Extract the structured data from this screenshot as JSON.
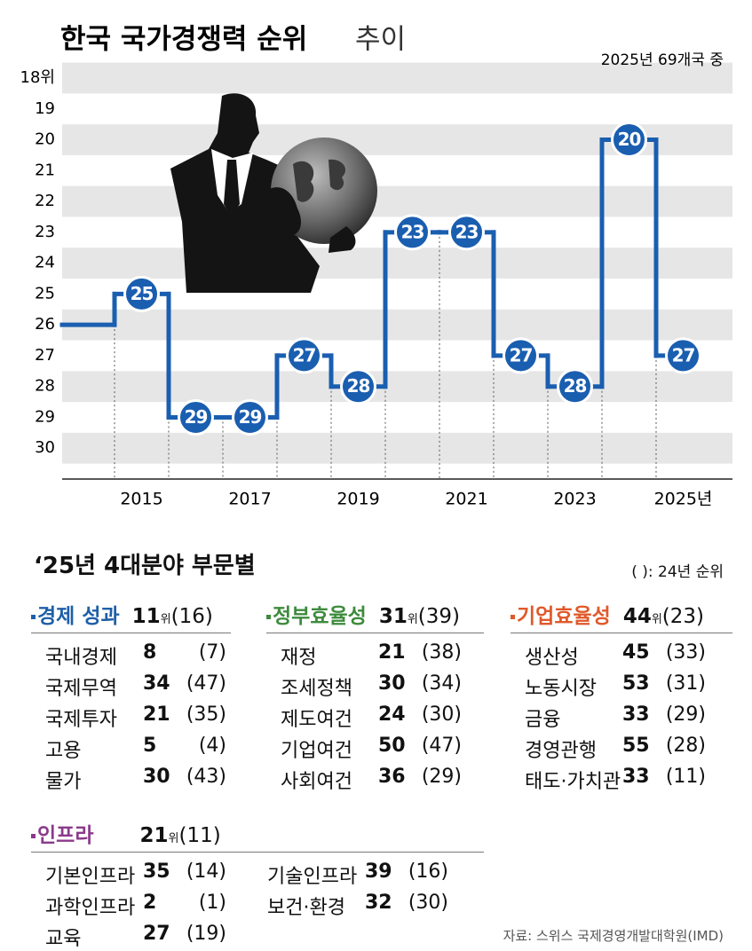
{
  "chart_data": {
    "type": "step",
    "title": "한국 국가경쟁력 순위",
    "title_note": "추이",
    "subtitle": "2025년 69개국 중",
    "categories": [
      null,
      "2015",
      null,
      "2017",
      null,
      "2019",
      null,
      "2021",
      null,
      "2023",
      null,
      "2025년"
    ],
    "values": [
      26,
      25,
      29,
      29,
      27,
      28,
      23,
      23,
      27,
      28,
      20,
      27
    ],
    "value_labels": [
      null,
      "25",
      "29",
      "29",
      "27",
      "28",
      "23",
      "23",
      "27",
      "28",
      "20",
      "27"
    ],
    "color": "#1a5eb0",
    "ylim": [
      18,
      31
    ],
    "invert_y": true,
    "yticks": [
      {
        "value": 18,
        "label": "18위"
      },
      19,
      20,
      21,
      22,
      23,
      24,
      25,
      26,
      27,
      28,
      29,
      30
    ],
    "grid": "stripes"
  },
  "breakdown": {
    "title": "‘25년 4대분야 부문별",
    "note": "( ): 24년 순위",
    "unit": "위",
    "sections": [
      {
        "name": "경제 성과",
        "color": "#1f5fa8",
        "rank": 11,
        "prev": "(16)",
        "items": [
          {
            "name": "국내경제",
            "rank": 8,
            "prev": "(7)"
          },
          {
            "name": "국제무역",
            "rank": 34,
            "prev": "(47)"
          },
          {
            "name": "국제투자",
            "rank": 21,
            "prev": "(35)"
          },
          {
            "name": "고용",
            "rank": 5,
            "prev": "(4)"
          },
          {
            "name": "물가",
            "rank": 30,
            "prev": "(43)"
          }
        ]
      },
      {
        "name": "정부효율성",
        "color": "#3d8b3d",
        "rank": 31,
        "prev": "(39)",
        "items": [
          {
            "name": "재정",
            "rank": 21,
            "prev": "(38)"
          },
          {
            "name": "조세정책",
            "rank": 30,
            "prev": "(34)"
          },
          {
            "name": "제도여건",
            "rank": 24,
            "prev": "(30)"
          },
          {
            "name": "기업여건",
            "rank": 50,
            "prev": "(47)"
          },
          {
            "name": "사회여건",
            "rank": 36,
            "prev": "(29)"
          }
        ]
      },
      {
        "name": "기업효율성",
        "color": "#e0592a",
        "rank": 44,
        "prev": "(23)",
        "items": [
          {
            "name": "생산성",
            "rank": 45,
            "prev": "(33)"
          },
          {
            "name": "노동시장",
            "rank": 53,
            "prev": "(31)"
          },
          {
            "name": "금융",
            "rank": 33,
            "prev": "(29)"
          },
          {
            "name": "경영관행",
            "rank": 55,
            "prev": "(28)"
          },
          {
            "name": "태도·가치관",
            "rank": 33,
            "prev": "(11)"
          }
        ]
      },
      {
        "name": "인프라",
        "color": "#8b3a8b",
        "rank": 21,
        "prev": "(11)",
        "items": [
          {
            "name": "기본인프라",
            "rank": 35,
            "prev": "(14)"
          },
          {
            "name": "과학인프라",
            "rank": 2,
            "prev": "(1)"
          },
          {
            "name": "교육",
            "rank": 27,
            "prev": "(19)"
          },
          {
            "name": "기술인프라",
            "rank": 39,
            "prev": "(16)"
          },
          {
            "name": "보건·환경",
            "rank": 32,
            "prev": "(30)"
          }
        ]
      }
    ],
    "source": "자료: 스위스 국제경영개발대학원(IMD)"
  }
}
